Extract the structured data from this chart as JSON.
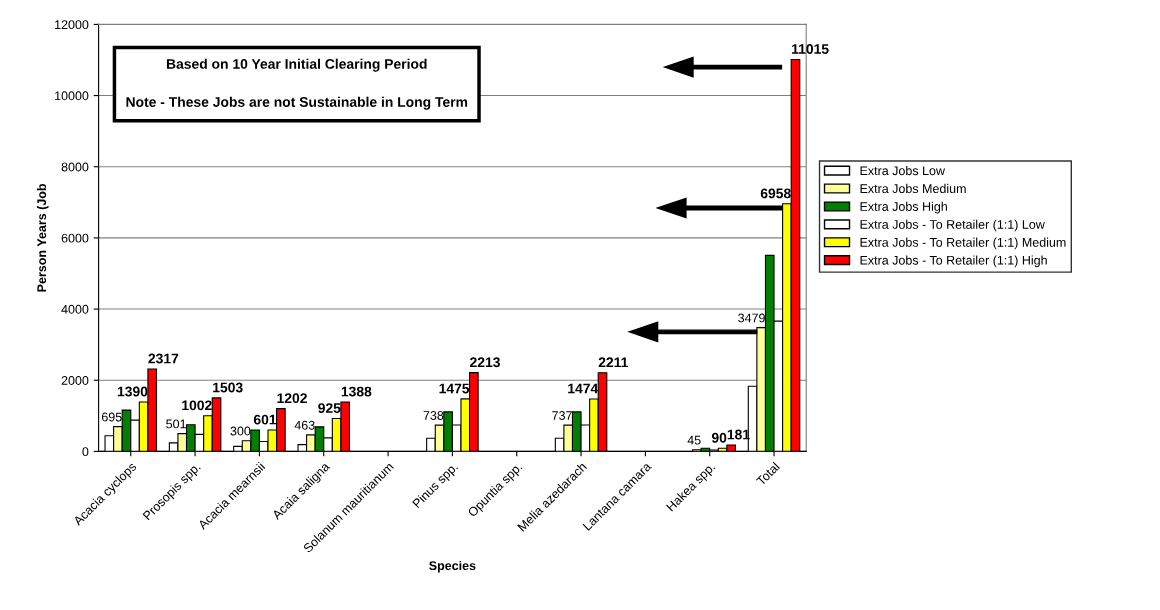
{
  "chart_data": {
    "type": "bar",
    "xlabel": "Species",
    "ylabel": "Person Years (Job",
    "categories": [
      "Acacia cyclops",
      "Prosopis spp.",
      "Acacia mearnsii",
      "Acaia saligna",
      "Solanum mauritianum",
      "Pinus spp.",
      "Opuntia spp.",
      "Melia azedarach",
      "Lantana camara",
      "Hakea spp.",
      "Total"
    ],
    "series": [
      {
        "name": "Extra Jobs Low",
        "color": "#ffffff",
        "values": [
          440,
          240,
          140,
          190,
          null,
          370,
          null,
          370,
          null,
          null,
          1830
        ]
      },
      {
        "name": "Extra Jobs Medium",
        "color": "#ffff99",
        "values": [
          695,
          501,
          300,
          463,
          null,
          738,
          null,
          737,
          null,
          45,
          3479
        ],
        "value_labels": [
          "695",
          "501",
          "300",
          "463",
          null,
          "738",
          null,
          "737",
          null,
          "45",
          "3479"
        ]
      },
      {
        "name": "Extra Jobs High",
        "color": "#008000",
        "values": [
          1160,
          750,
          600,
          690,
          null,
          1110,
          null,
          1110,
          null,
          90,
          5510
        ]
      },
      {
        "name": "Extra Jobs - To Retailer (1:1) Low",
        "color": "#ffffff",
        "values": [
          880,
          480,
          280,
          380,
          null,
          740,
          null,
          740,
          null,
          40,
          3660
        ]
      },
      {
        "name": "Extra Jobs - To Retailer (1:1) Medium",
        "color": "#ffff00",
        "values": [
          1390,
          1002,
          601,
          925,
          null,
          1475,
          null,
          1474,
          null,
          90,
          6958
        ],
        "value_labels": [
          "1390",
          "1002",
          "601",
          "925",
          null,
          "1475",
          null,
          "1474",
          null,
          "90",
          "6958"
        ]
      },
      {
        "name": "Extra Jobs - To Retailer (1:1) High",
        "color": "#ff0000",
        "values": [
          2317,
          1503,
          1202,
          1388,
          null,
          2213,
          null,
          2211,
          null,
          181,
          11015
        ],
        "value_labels": [
          "2317",
          "1503",
          "1202",
          "1388",
          null,
          "2213",
          null,
          "2211",
          null,
          "181",
          "11015"
        ]
      }
    ],
    "ylim": [
      0,
      12000
    ],
    "yticks": [
      0,
      2000,
      4000,
      6000,
      8000,
      10000,
      12000
    ],
    "grid": "y",
    "legend": "right",
    "annotations": [
      "Based on 10 Year Initial Clearing Period\n\nNote - These Jobs are not Sustainable in Long Term"
    ]
  }
}
